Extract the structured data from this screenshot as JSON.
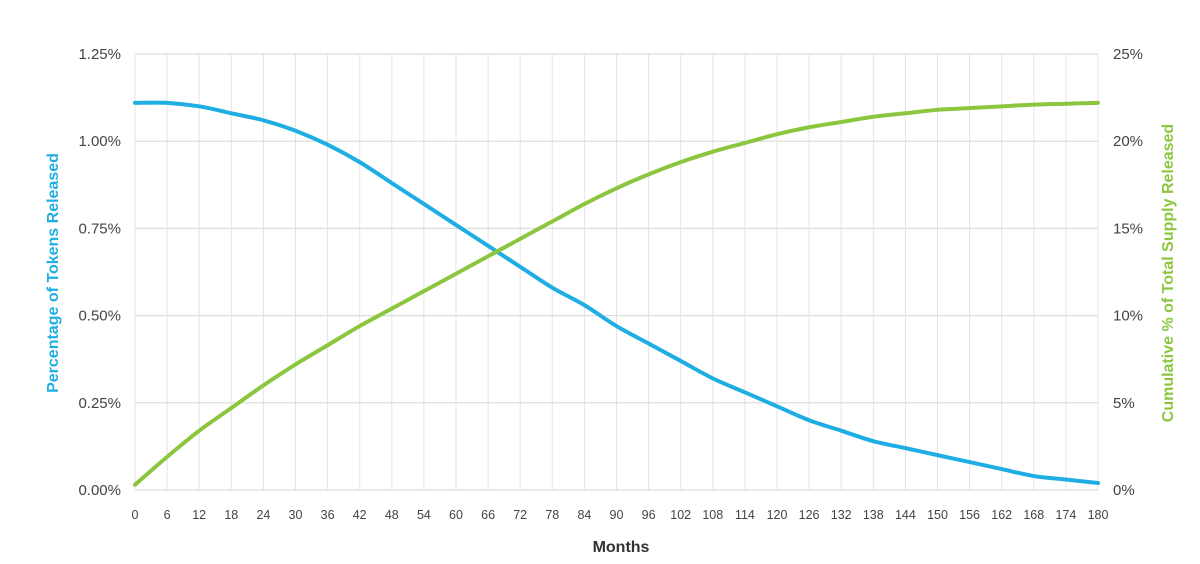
{
  "chart_data": {
    "type": "line",
    "xlabel": "Months",
    "ylabel_left": "Percentage of Tokens Released",
    "ylabel_right": "Cumulative % of Total Supply Released",
    "x_ticks": [
      "0",
      "6",
      "12",
      "18",
      "24",
      "30",
      "36",
      "42",
      "48",
      "54",
      "60",
      "66",
      "72",
      "78",
      "84",
      "90",
      "96",
      "102",
      "108",
      "114",
      "120",
      "126",
      "132",
      "138",
      "144",
      "150",
      "156",
      "162",
      "168",
      "174",
      "180"
    ],
    "y_left_ticks": [
      "0.00%",
      "0.25%",
      "0.50%",
      "0.75%",
      "1.00%",
      "1.25%"
    ],
    "y_right_ticks": [
      "0%",
      "5%",
      "10%",
      "15%",
      "20%",
      "25%"
    ],
    "xlim": [
      0,
      180
    ],
    "ylim_left": [
      0,
      1.25
    ],
    "ylim_right": [
      0,
      25
    ],
    "grid": true,
    "colors": {
      "left_series": "#1eaee4",
      "right_series": "#8cc63f",
      "grid": "#e4e4e4",
      "axis_title": "#333333"
    },
    "series": [
      {
        "axis": "left",
        "x": [
          0,
          6,
          12,
          18,
          24,
          30,
          36,
          42,
          48,
          54,
          60,
          66,
          72,
          78,
          84,
          90,
          96,
          102,
          108,
          114,
          120,
          126,
          132,
          138,
          144,
          150,
          156,
          162,
          168,
          174,
          180
        ],
        "values": [
          1.11,
          1.11,
          1.1,
          1.08,
          1.06,
          1.03,
          0.99,
          0.94,
          0.88,
          0.82,
          0.76,
          0.7,
          0.64,
          0.58,
          0.53,
          0.47,
          0.42,
          0.37,
          0.32,
          0.28,
          0.24,
          0.2,
          0.17,
          0.14,
          0.12,
          0.1,
          0.08,
          0.06,
          0.04,
          0.03,
          0.02
        ]
      },
      {
        "axis": "right",
        "x": [
          0,
          6,
          12,
          18,
          24,
          30,
          36,
          42,
          48,
          54,
          60,
          66,
          72,
          78,
          84,
          90,
          96,
          102,
          108,
          114,
          120,
          126,
          132,
          138,
          144,
          150,
          156,
          162,
          168,
          174,
          180
        ],
        "values": [
          0.3,
          1.9,
          3.4,
          4.7,
          6.0,
          7.2,
          8.3,
          9.4,
          10.4,
          11.4,
          12.4,
          13.4,
          14.4,
          15.4,
          16.4,
          17.3,
          18.1,
          18.8,
          19.4,
          19.9,
          20.4,
          20.8,
          21.1,
          21.4,
          21.6,
          21.8,
          21.9,
          22.0,
          22.1,
          22.15,
          22.2
        ]
      }
    ]
  }
}
